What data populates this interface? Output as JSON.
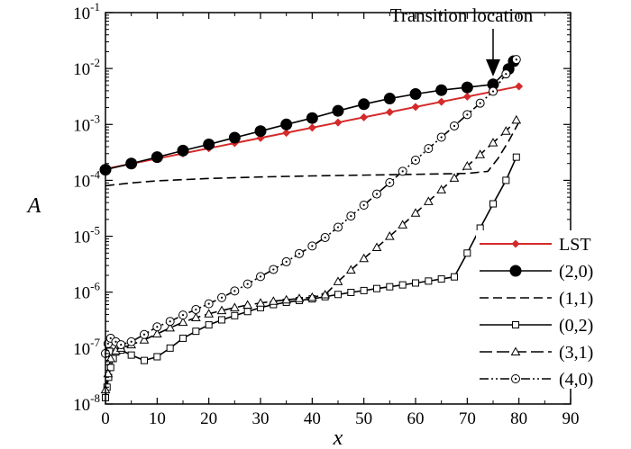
{
  "chart_data": {
    "type": "line",
    "title": "",
    "xlabel": "x",
    "ylabel": "A",
    "xlim": [
      0,
      90
    ],
    "ylim": [
      1e-08,
      0.1
    ],
    "yscale": "log",
    "xticks": [
      "0",
      "10",
      "20",
      "30",
      "40",
      "50",
      "60",
      "70",
      "80",
      "90"
    ],
    "yticks": [
      {
        "base": "10",
        "exp": "-8"
      },
      {
        "base": "10",
        "exp": "-7"
      },
      {
        "base": "10",
        "exp": "-6"
      },
      {
        "base": "10",
        "exp": "-5"
      },
      {
        "base": "10",
        "exp": "-4"
      },
      {
        "base": "10",
        "exp": "-3"
      },
      {
        "base": "10",
        "exp": "-2"
      },
      {
        "base": "10",
        "exp": "-1"
      }
    ],
    "grid": false,
    "legend_position": "lower-right",
    "annotation": {
      "text": "Transition location",
      "x": 75,
      "y": 0.006
    },
    "series": [
      {
        "name": "LST",
        "color": "#d42a2a",
        "dash": "solid",
        "marker": "diamond-filled",
        "x": [
          0,
          80
        ],
        "y": [
          0.00016,
          0.0048
        ]
      },
      {
        "name": "(2,0)",
        "color": "#000000",
        "dash": "solid",
        "marker": "circle-filled",
        "x": [
          0,
          5,
          10,
          15,
          20,
          25,
          30,
          35,
          40,
          45,
          50,
          55,
          60,
          65,
          70,
          75,
          78,
          79
        ],
        "y": [
          0.000155,
          0.0002,
          0.00026,
          0.00034,
          0.00044,
          0.00058,
          0.00076,
          0.001,
          0.0013,
          0.00175,
          0.0023,
          0.0029,
          0.0035,
          0.0041,
          0.0046,
          0.0052,
          0.0098,
          0.0135
        ]
      },
      {
        "name": "(1,1)",
        "color": "#000000",
        "dash": "dashed",
        "marker": "none",
        "x": [
          0,
          5,
          10,
          20,
          30,
          40,
          50,
          60,
          70,
          74,
          76,
          78,
          80
        ],
        "y": [
          8e-05,
          9e-05,
          9.8e-05,
          0.000108,
          0.000115,
          0.00012,
          0.000124,
          0.000128,
          0.000133,
          0.000145,
          0.00025,
          0.0005,
          0.0011
        ]
      },
      {
        "name": "(0,2)",
        "color": "#000000",
        "dash": "solid",
        "marker": "square-open",
        "x": [
          0,
          0.3,
          0.6,
          1,
          1.5,
          2,
          3,
          5,
          7.5,
          10,
          12.5,
          15,
          17.5,
          20,
          22.5,
          25,
          27.5,
          30,
          32.5,
          35,
          37.5,
          40,
          42.5,
          45,
          47.5,
          50,
          52.5,
          55,
          57.5,
          60,
          62.5,
          65,
          67.5,
          70,
          72.5,
          75,
          77.5,
          79.5
        ],
        "y": [
          1.3e-08,
          2e-08,
          3e-08,
          4.5e-08,
          6.5e-08,
          8.5e-08,
          9.2e-08,
          7.5e-08,
          6e-08,
          7e-08,
          1e-07,
          1.5e-07,
          2e-07,
          2.6e-07,
          3.2e-07,
          3.8e-07,
          4.5e-07,
          5.3e-07,
          6e-07,
          6.6e-07,
          7.1e-07,
          7.6e-07,
          8.3e-07,
          9.1e-07,
          9.9e-07,
          1.07e-06,
          1.16e-06,
          1.25e-06,
          1.35e-06,
          1.46e-06,
          1.58e-06,
          1.72e-06,
          1.88e-06,
          5e-06,
          1.4e-05,
          3.8e-05,
          0.0001,
          0.00026
        ]
      },
      {
        "name": "(3,1)",
        "color": "#000000",
        "dash": "long-dash",
        "marker": "triangle-open",
        "x": [
          0,
          0.5,
          1,
          2,
          3,
          5,
          7.5,
          10,
          12.5,
          15,
          17.5,
          20,
          22.5,
          25,
          27.5,
          30,
          32.5,
          35,
          37.5,
          40,
          42.5,
          45,
          47.5,
          50,
          52.5,
          55,
          57.5,
          60,
          62.5,
          65,
          67.5,
          70,
          72.5,
          75,
          77.5,
          79.5
        ],
        "y": [
          1.8e-08,
          3.5e-08,
          6.5e-08,
          9e-08,
          1e-07,
          1.15e-07,
          1.4e-07,
          1.8e-07,
          2.3e-07,
          2.9e-07,
          3.5e-07,
          4.1e-07,
          4.7e-07,
          5.3e-07,
          5.9e-07,
          6.4e-07,
          6.9e-07,
          7.3e-07,
          7.7e-07,
          8.1e-07,
          9e-07,
          1.55e-06,
          2.5e-06,
          4e-06,
          6.3e-06,
          1e-05,
          1.6e-05,
          2.6e-05,
          4.2e-05,
          6.8e-05,
          0.00011,
          0.00018,
          0.00029,
          0.00047,
          0.00076,
          0.0012
        ]
      },
      {
        "name": "(4,0)",
        "color": "#000000",
        "dash": "dash-dot-dot",
        "marker": "circle-dot",
        "x": [
          0,
          0.5,
          1,
          2,
          3,
          5,
          7.5,
          10,
          12.5,
          15,
          17.5,
          20,
          22.5,
          25,
          27.5,
          30,
          32.5,
          35,
          37.5,
          40,
          42.5,
          45,
          47.5,
          50,
          52.5,
          55,
          57.5,
          60,
          62.5,
          65,
          67.5,
          70,
          72.5,
          75,
          77.5,
          79.5
        ],
        "y": [
          8e-08,
          1.2e-07,
          1.5e-07,
          1.3e-07,
          1.15e-07,
          1.3e-07,
          1.75e-07,
          2.4e-07,
          3e-07,
          3.9e-07,
          4.9e-07,
          6.2e-07,
          8e-07,
          1.05e-06,
          1.4e-06,
          1.9e-06,
          2.55e-06,
          3.5e-06,
          4.9e-06,
          6.7e-06,
          9.5e-06,
          1.45e-05,
          2.3e-05,
          3.6e-05,
          5.7e-05,
          9.1e-05,
          0.000145,
          0.00023,
          0.00037,
          0.00059,
          0.00094,
          0.0015,
          0.0024,
          0.0039,
          0.008,
          0.0145
        ]
      }
    ]
  }
}
